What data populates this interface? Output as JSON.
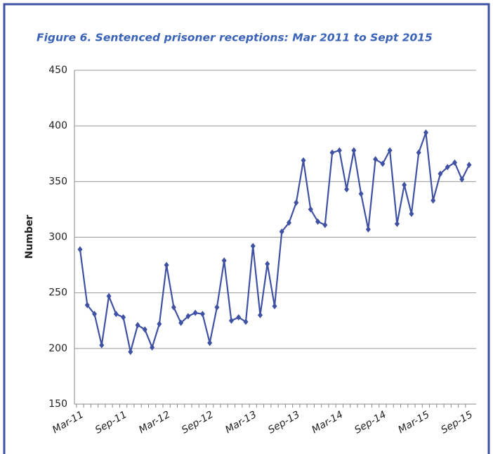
{
  "chart_data": {
    "type": "line",
    "title": "Figure 6.  Sentenced prisoner receptions: Mar 2011 to Sept 2015",
    "y_label": "Number",
    "categories": [
      "Mar-11",
      null,
      null,
      null,
      null,
      null,
      "Sep-11",
      null,
      null,
      null,
      null,
      null,
      "Mar-12",
      null,
      null,
      null,
      null,
      null,
      "Sep-12",
      null,
      null,
      null,
      null,
      null,
      "Mar-13",
      null,
      null,
      null,
      null,
      null,
      "Sep-13",
      null,
      null,
      null,
      null,
      null,
      "Mar-14",
      null,
      null,
      null,
      null,
      null,
      "Sep-14",
      null,
      null,
      null,
      null,
      null,
      "Mar-15",
      null,
      null,
      null,
      null,
      null,
      "Sep-15"
    ],
    "values": [
      289,
      239,
      231,
      203,
      247,
      231,
      228,
      197,
      221,
      217,
      201,
      222,
      275,
      237,
      223,
      229,
      232,
      231,
      205,
      237,
      279,
      225,
      228,
      224,
      292,
      230,
      276,
      238,
      305,
      313,
      331,
      369,
      325,
      314,
      311,
      376,
      378,
      343,
      378,
      339,
      307,
      370,
      366,
      378,
      312,
      347,
      321,
      376,
      394,
      333,
      357,
      363,
      367,
      352,
      365
    ],
    "color": "#3f51a3",
    "ylim": [
      150,
      450
    ],
    "yticks": [
      150,
      200,
      250,
      300,
      350,
      400,
      450
    ],
    "grid": true
  }
}
